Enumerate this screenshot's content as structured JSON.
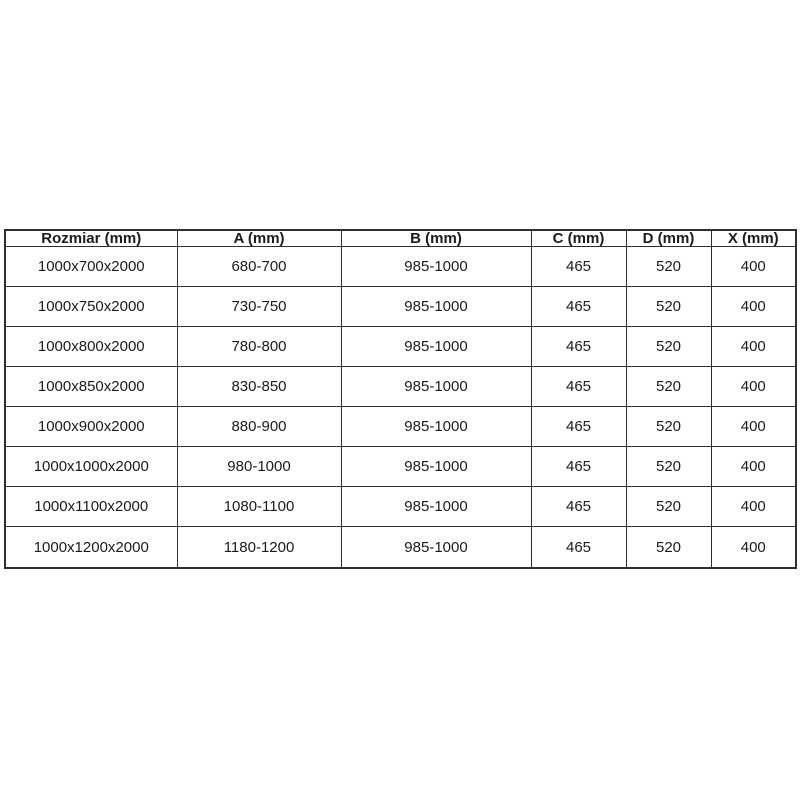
{
  "colors": {
    "background": "#ffffff",
    "table_border": "#2e2e2e",
    "text": "#1b1b1b"
  },
  "chart_data": {
    "type": "table",
    "columns": [
      "Rozmiar (mm)",
      "A (mm)",
      "B (mm)",
      "C (mm)",
      "D (mm)",
      "X (mm)"
    ],
    "rows": [
      [
        "1000x700x2000",
        "680-700",
        "985-1000",
        "465",
        "520",
        "400"
      ],
      [
        "1000x750x2000",
        "730-750",
        "985-1000",
        "465",
        "520",
        "400"
      ],
      [
        "1000x800x2000",
        "780-800",
        "985-1000",
        "465",
        "520",
        "400"
      ],
      [
        "1000x850x2000",
        "830-850",
        "985-1000",
        "465",
        "520",
        "400"
      ],
      [
        "1000x900x2000",
        "880-900",
        "985-1000",
        "465",
        "520",
        "400"
      ],
      [
        "1000x1000x2000",
        "980-1000",
        "985-1000",
        "465",
        "520",
        "400"
      ],
      [
        "1000x1100x2000",
        "1080-1100",
        "985-1000",
        "465",
        "520",
        "400"
      ],
      [
        "1000x1200x2000",
        "1180-1200",
        "985-1000",
        "465",
        "520",
        "400"
      ]
    ]
  }
}
